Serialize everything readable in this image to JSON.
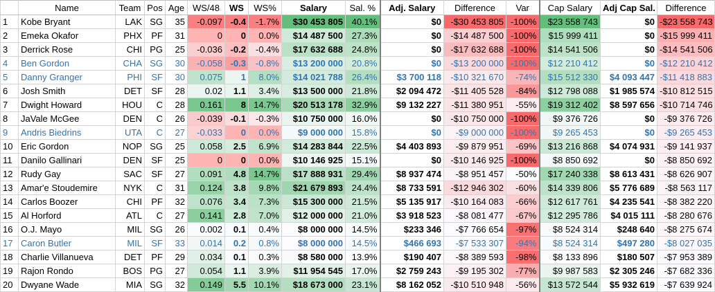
{
  "headers": [
    {
      "label": "",
      "key": "num"
    },
    {
      "label": "Name",
      "key": "name"
    },
    {
      "label": "Team",
      "key": "team"
    },
    {
      "label": "Pos",
      "key": "pos"
    },
    {
      "label": "Age",
      "key": "age"
    },
    {
      "label": "WS/48",
      "key": "ws48"
    },
    {
      "label": "WS",
      "key": "ws"
    },
    {
      "label": "WS%",
      "key": "wsp"
    },
    {
      "label": "Salary",
      "key": "salary"
    },
    {
      "label": "Sal. %",
      "key": "salp"
    },
    {
      "label": "Adj. Salary",
      "key": "adj"
    },
    {
      "label": "Difference",
      "key": "diff"
    },
    {
      "label": "Var",
      "key": "var"
    },
    {
      "label": "Cap Salary",
      "key": "cap"
    },
    {
      "label": "Adj Cap Sal.",
      "key": "adjcap"
    },
    {
      "label": "Difference",
      "key": "diff2"
    }
  ],
  "rows": [
    {
      "num": "1",
      "name": "Kobe Bryant",
      "team": "LAK",
      "pos": "SG",
      "age": "35",
      "ws48": "-0.097",
      "ws": "-0.4",
      "wsp": "-1.7%",
      "salary": "$30 453 805",
      "salp": "40.1%",
      "adj": "$0",
      "diff": "-$30 453 805",
      "var": "-100%",
      "cap": "$23 558 743",
      "adjcap": "$0",
      "diff2": "-$23 558 743",
      "blue": false
    },
    {
      "num": "2",
      "name": "Emeka Okafor",
      "team": "PHX",
      "pos": "PF",
      "age": "31",
      "ws48": "0",
      "ws": "0",
      "wsp": "0.0%",
      "salary": "$14 487 500",
      "salp": "27.3%",
      "adj": "$0",
      "diff": "-$14 487 500",
      "var": "-100%",
      "cap": "$15 999 411",
      "adjcap": "$0",
      "diff2": "-$15 999 411",
      "blue": false
    },
    {
      "num": "3",
      "name": "Derrick Rose",
      "team": "CHI",
      "pos": "PG",
      "age": "25",
      "ws48": "-0.036",
      "ws": "-0.2",
      "wsp": "-0.4%",
      "salary": "$17 632 688",
      "salp": "24.8%",
      "adj": "$0",
      "diff": "-$17 632 688",
      "var": "-100%",
      "cap": "$14 541 506",
      "adjcap": "$0",
      "diff2": "-$14 541 506",
      "blue": false
    },
    {
      "num": "4",
      "name": "Ben Gordon",
      "team": "CHA",
      "pos": "SG",
      "age": "30",
      "ws48": "-0.058",
      "ws": "-0.3",
      "wsp": "-0.8%",
      "salary": "$13 200 000",
      "salp": "20.8%",
      "adj": "$0",
      "diff": "-$13 200 000",
      "var": "-100%",
      "cap": "$12 210 412",
      "adjcap": "$0",
      "diff2": "-$12 210 412",
      "blue": true
    },
    {
      "num": "5",
      "name": "Danny Granger",
      "team": "PHI",
      "pos": "SF",
      "age": "30",
      "ws48": "0.075",
      "ws": "1",
      "wsp": "8.0%",
      "salary": "$14 021 788",
      "salp": "26.4%",
      "adj": "$3 700 118",
      "diff": "-$10 321 670",
      "var": "-74%",
      "cap": "$15 512 330",
      "adjcap": "$4 093 447",
      "diff2": "-$11 418 883",
      "blue": true
    },
    {
      "num": "6",
      "name": "Josh Smith",
      "team": "DET",
      "pos": "SF",
      "age": "28",
      "ws48": "0.02",
      "ws": "1.1",
      "wsp": "3.4%",
      "salary": "$13 500 000",
      "salp": "21.8%",
      "adj": "$2 094 472",
      "diff": "-$11 405 528",
      "var": "-84%",
      "cap": "$12 798 088",
      "adjcap": "$1 985 574",
      "diff2": "-$10 812 515",
      "blue": false
    },
    {
      "num": "7",
      "name": "Dwight Howard",
      "team": "HOU",
      "pos": "C",
      "age": "28",
      "ws48": "0.161",
      "ws": "8",
      "wsp": "14.7%",
      "salary": "$20 513 178",
      "salp": "32.9%",
      "adj": "$9 132 227",
      "diff": "-$11 380 951",
      "var": "-55%",
      "cap": "$19 312 402",
      "adjcap": "$8 597 656",
      "diff2": "-$10 714 746",
      "blue": false
    },
    {
      "num": "8",
      "name": "JaVale McGee",
      "team": "DEN",
      "pos": "C",
      "age": "26",
      "ws48": "-0.039",
      "ws": "-0.1",
      "wsp": "-0.3%",
      "salary": "$10 750 000",
      "salp": "16.0%",
      "adj": "$0",
      "diff": "-$10 750 000",
      "var": "-100%",
      "cap": "$9 376 726",
      "adjcap": "$0",
      "diff2": "-$9 376 726",
      "blue": false
    },
    {
      "num": "9",
      "name": "Andris Biedrins",
      "team": "UTA",
      "pos": "C",
      "age": "27",
      "ws48": "-0.033",
      "ws": "0",
      "wsp": "0.0%",
      "salary": "$9 000 000",
      "salp": "15.8%",
      "adj": "$0",
      "diff": "-$9 000 000",
      "var": "-100%",
      "cap": "$9 265 453",
      "adjcap": "$0",
      "diff2": "-$9 265 453",
      "blue": true
    },
    {
      "num": "10",
      "name": "Eric Gordon",
      "team": "NOP",
      "pos": "SG",
      "age": "25",
      "ws48": "0.058",
      "ws": "2.5",
      "wsp": "6.9%",
      "salary": "$14 283 844",
      "salp": "22.5%",
      "adj": "$4 403 893",
      "diff": "-$9 879 951",
      "var": "-69%",
      "cap": "$13 216 868",
      "adjcap": "$4 074 931",
      "diff2": "-$9 141 937",
      "blue": false
    },
    {
      "num": "11",
      "name": "Danilo Gallinari",
      "team": "DEN",
      "pos": "SF",
      "age": "25",
      "ws48": "0",
      "ws": "0",
      "wsp": "0.0%",
      "salary": "$10 146 925",
      "salp": "15.1%",
      "adj": "$0",
      "diff": "-$10 146 925",
      "var": "-100%",
      "cap": "$8 850 692",
      "adjcap": "$0",
      "diff2": "-$8 850 692",
      "blue": false
    },
    {
      "num": "12",
      "name": "Rudy Gay",
      "team": "SAC",
      "pos": "SF",
      "age": "27",
      "ws48": "0.091",
      "ws": "4.8",
      "wsp": "14.7%",
      "salary": "$17 888 931",
      "salp": "29.4%",
      "adj": "$8 937 474",
      "diff": "-$8 951 457",
      "var": "-50%",
      "cap": "$17 240 338",
      "adjcap": "$8 613 431",
      "diff2": "-$8 626 907",
      "blue": false
    },
    {
      "num": "13",
      "name": "Amar'e Stoudemire",
      "team": "NYK",
      "pos": "C",
      "age": "31",
      "ws48": "0.124",
      "ws": "3.8",
      "wsp": "9.8%",
      "salary": "$21 679 893",
      "salp": "24.4%",
      "adj": "$8 733 591",
      "diff": "-$12 946 302",
      "var": "-60%",
      "cap": "$14 339 806",
      "adjcap": "$5 776 689",
      "diff2": "-$8 563 117",
      "blue": false
    },
    {
      "num": "14",
      "name": "Carlos Boozer",
      "team": "CHI",
      "pos": "PF",
      "age": "32",
      "ws48": "0.076",
      "ws": "3.4",
      "wsp": "7.3%",
      "salary": "$15 300 000",
      "salp": "21.5%",
      "adj": "$5 135 917",
      "diff": "-$10 164 083",
      "var": "-66%",
      "cap": "$12 617 761",
      "adjcap": "$4 235 541",
      "diff2": "-$8 382 220",
      "blue": false
    },
    {
      "num": "15",
      "name": "Al Horford",
      "team": "ATL",
      "pos": "C",
      "age": "27",
      "ws48": "0.141",
      "ws": "2.8",
      "wsp": "7.0%",
      "salary": "$12 000 000",
      "salp": "21.0%",
      "adj": "$3 918 523",
      "diff": "-$8 081 477",
      "var": "-67%",
      "cap": "$12 295 786",
      "adjcap": "$4 015 111",
      "diff2": "-$8 280 676",
      "blue": false
    },
    {
      "num": "16",
      "name": "O.J. Mayo",
      "team": "MIL",
      "pos": "SG",
      "age": "26",
      "ws48": "0.002",
      "ws": "0.1",
      "wsp": "0.4%",
      "salary": "$8 000 000",
      "salp": "14.5%",
      "adj": "$233 346",
      "diff": "-$7 766 654",
      "var": "-97%",
      "cap": "$8 524 314",
      "adjcap": "$248 640",
      "diff2": "-$8 275 674",
      "blue": false
    },
    {
      "num": "17",
      "name": "Caron Butler",
      "team": "MIL",
      "pos": "SF",
      "age": "33",
      "ws48": "0.014",
      "ws": "0.2",
      "wsp": "0.8%",
      "salary": "$8 000 000",
      "salp": "14.5%",
      "adj": "$466 693",
      "diff": "-$7 533 307",
      "var": "-94%",
      "cap": "$8 524 314",
      "adjcap": "$497 280",
      "diff2": "-$8 027 035",
      "blue": true
    },
    {
      "num": "18",
      "name": "Charlie Villanueva",
      "team": "DET",
      "pos": "PF",
      "age": "29",
      "ws48": "0.034",
      "ws": "0.1",
      "wsp": "0.3%",
      "salary": "$8 580 000",
      "salp": "13.9%",
      "adj": "$190 407",
      "diff": "-$8 389 593",
      "var": "-98%",
      "cap": "$8 133 896",
      "adjcap": "$180 507",
      "diff2": "-$7 953 389",
      "blue": false
    },
    {
      "num": "19",
      "name": "Rajon Rondo",
      "team": "BOS",
      "pos": "PG",
      "age": "27",
      "ws48": "0.054",
      "ws": "1.1",
      "wsp": "3.9%",
      "salary": "$11 954 545",
      "salp": "17.0%",
      "adj": "$2 759 243",
      "diff": "-$9 195 302",
      "var": "-77%",
      "cap": "$9 987 583",
      "adjcap": "$2 305 246",
      "diff2": "-$7 682 336",
      "blue": false
    },
    {
      "num": "20",
      "name": "Dwyane Wade",
      "team": "MIA",
      "pos": "SG",
      "age": "32",
      "ws48": "0.149",
      "ws": "5.5",
      "wsp": "10.1%",
      "salary": "$18 673 000",
      "salp": "23.1%",
      "adj": "$8 162 052",
      "diff": "-$10 510 948",
      "var": "-56%",
      "cap": "$13 572 544",
      "adjcap": "$5 932 619",
      "diff2": "-$7 639 924",
      "blue": false
    }
  ]
}
